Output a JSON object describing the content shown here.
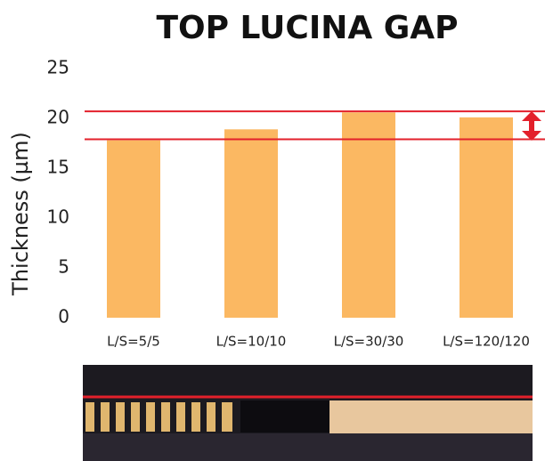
{
  "chart_data": {
    "type": "bar",
    "title": "TOP LUCINA GAP",
    "y_label": "Thickness (µm)",
    "categories": [
      "L/S=5/5",
      "L/S=10/10",
      "L/S=30/30",
      "L/S=120/120"
    ],
    "values": [
      17.8,
      18.9,
      20.6,
      20.1
    ],
    "color": "#fbb862",
    "ylim": [
      0,
      25
    ],
    "yticks": [
      0,
      5,
      10,
      15,
      20,
      25
    ],
    "grid": false,
    "reference_lines": [
      20.7,
      17.9
    ],
    "reference_color": "#e3202b"
  }
}
